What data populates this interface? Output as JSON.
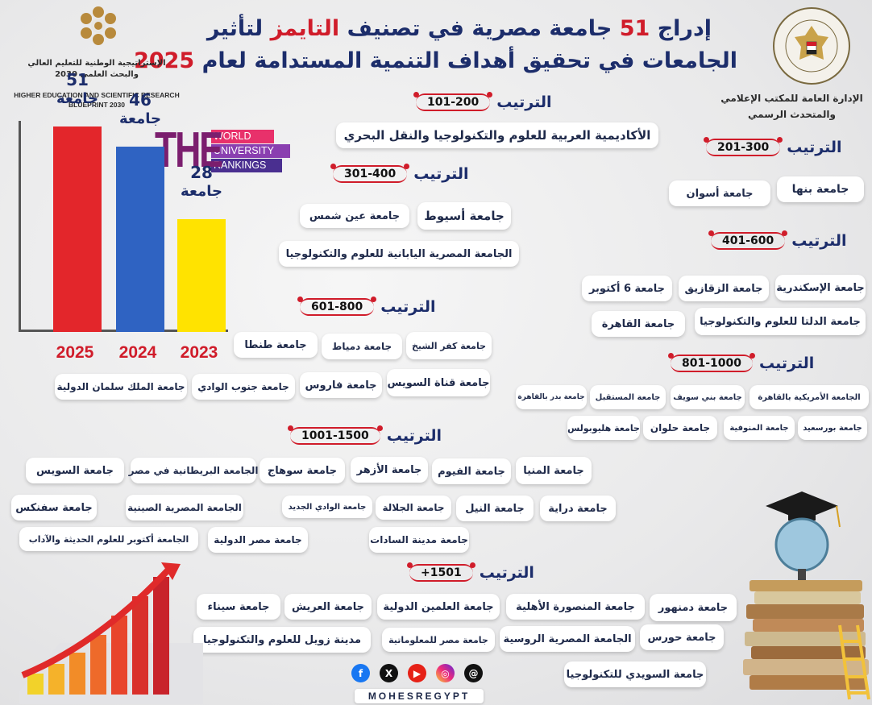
{
  "header": {
    "title_part1": "إدراج",
    "title_count": "51",
    "title_part2": "جامعة مصرية في تصنيف",
    "title_times": "التايمز",
    "title_part3": "لتأثير",
    "title_line2_part1": "الجامعات في تحقيق أهداف التنمية المستدامة لعام",
    "title_year": "2025"
  },
  "left_logo": {
    "arabic_line1": "الإستراتيجية الوطنية للتعليم العالي",
    "arabic_line2": "والبحث العلمي 2030",
    "english_line1": "HIGHER EDUCATION AND SCIENTIFIC RESEARCH",
    "english_line2": "BLUEPRINT 2030"
  },
  "right_logo": {
    "seal_text": "وزارة التعليم العالي والبحث العلمي · Ministry of Higher Education and Scientific Research",
    "office_line1": "الإدارة العامة للمكتب الإعلامي",
    "office_line2": "والمتحدث الرسمي"
  },
  "the_logo": {
    "mark": "THE",
    "line1": "WORLD",
    "line2": "UNIVERSITY",
    "line3": "RANKINGS"
  },
  "chart_data": {
    "type": "bar",
    "categories": [
      "2025",
      "2024",
      "2023"
    ],
    "values": [
      51,
      46,
      28
    ],
    "value_unit": "جامعة",
    "colors": [
      "#e3262b",
      "#2f63c2",
      "#ffe300"
    ],
    "ylim": [
      0,
      60
    ],
    "grid": false
  },
  "rank_label": "الترتيب",
  "groups": {
    "g1": {
      "range": "101-200",
      "items": [
        "الأكاديمية العربية للعلوم والتكنولوجيا والنقل البحري"
      ]
    },
    "g2": {
      "range": "201-300",
      "items": [
        "جامعة بنها",
        "جامعة أسوان"
      ]
    },
    "g3": {
      "range": "301-400",
      "items": [
        "جامعة أسيوط",
        "جامعة عين شمس",
        "الجامعة المصرية اليابانية للعلوم والتكنولوجيا"
      ]
    },
    "g4": {
      "range": "401-600",
      "items": [
        "جامعة الإسكندرية",
        "جامعة الزقازيق",
        "جامعة 6 أكتوبر",
        "جامعة الدلتا للعلوم والتكنولوجيا",
        "جامعة القاهرة"
      ]
    },
    "g5": {
      "range": "601-800",
      "items": [
        "جامعة كفر الشيخ",
        "جامعة دمياط",
        "جامعة طنطا",
        "جامعة قناة السويس",
        "جامعة فاروس",
        "جامعة جنوب الوادي",
        "جامعة الملك سلمان الدولية"
      ]
    },
    "g6": {
      "range": "801-1000",
      "items": [
        "الجامعة الأمريكية بالقاهرة",
        "جامعة بني سويف",
        "جامعة المستقبل",
        "جامعة بدر بالقاهرة",
        "جامعة بورسعيد",
        "جامعة المنوفية",
        "جامعة حلوان",
        "جامعة هليوبولس"
      ]
    },
    "g7": {
      "range": "1001-1500",
      "items": [
        "جامعة المنيا",
        "جامعة الفيوم",
        "جامعة الأزهر",
        "جامعة سوهاج",
        "الجامعة البريطانية في مصر",
        "جامعة السويس",
        "جامعة دراية",
        "جامعة النيل",
        "جامعة الجلالة",
        "جامعة الوادي الجديد",
        "الجامعة المصرية الصينية",
        "جامعة سفنكس",
        "جامعة مدينة السادات",
        "جامعة مصر الدولية",
        "الجامعة أكتوبر للعلوم الحديثة والآداب"
      ]
    },
    "g8": {
      "range": "+1501",
      "items": [
        "جامعة دمنهور",
        "جامعة المنصورة الأهلية",
        "جامعة العلمين الدولية",
        "جامعة العريش",
        "جامعة سيناء",
        "جامعة حورس",
        "الجامعة المصرية الروسية",
        "جامعة مصر للمعلوماتية",
        "مدينة زويل للعلوم والتكنولوجيا",
        "جامعة السويدي للتكنولوجيا"
      ]
    }
  },
  "footer": {
    "handle": "MOHESREGYPT",
    "social_icons": [
      "facebook-icon",
      "x-icon",
      "youtube-icon",
      "instagram-icon",
      "threads-icon"
    ]
  }
}
